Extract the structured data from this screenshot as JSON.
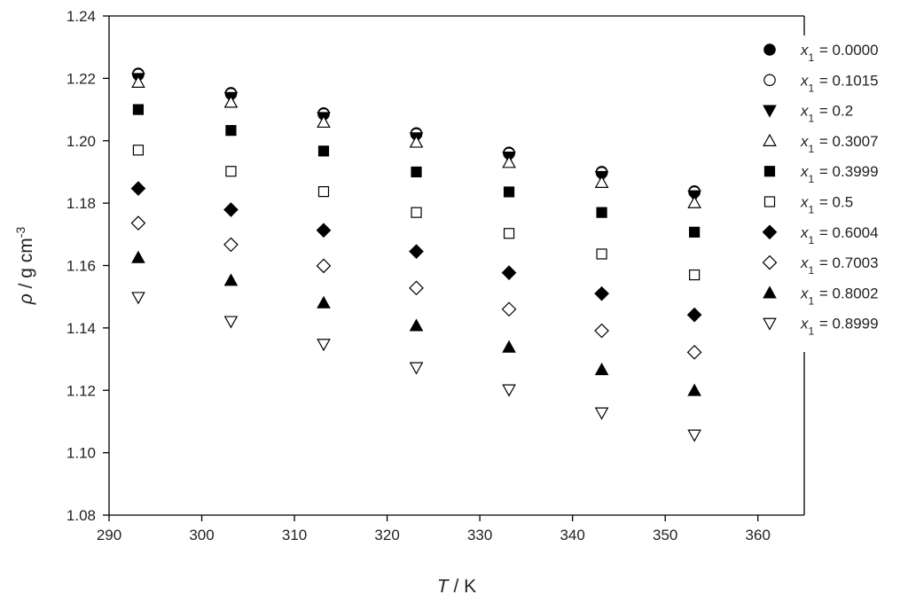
{
  "chart_data": {
    "type": "scatter",
    "xlabel": {
      "italic": "T",
      "rest": " / K"
    },
    "ylabel": {
      "italic": "ρ",
      "rest": " / g cm",
      "sup": "-3"
    },
    "xlim": [
      290,
      365
    ],
    "ylim": [
      1.08,
      1.24
    ],
    "xticks": [
      290,
      300,
      310,
      320,
      330,
      340,
      350,
      360
    ],
    "yticks": [
      "1.08",
      "1.10",
      "1.12",
      "1.14",
      "1.16",
      "1.18",
      "1.20",
      "1.22",
      "1.24"
    ],
    "grid": false,
    "legend_position": "top-right",
    "x": [
      293.15,
      303.15,
      313.15,
      323.15,
      333.15,
      343.15,
      353.15
    ],
    "series": [
      {
        "name": "x1 = 0.0000",
        "label_var": "x",
        "label_sub": "1",
        "label_rest": " = 0.0000",
        "marker": "circle-filled",
        "values": [
          1.2215,
          1.2153,
          1.2088,
          1.2024,
          1.1962,
          1.19,
          1.1838
        ]
      },
      {
        "name": "x1 = 0.1015",
        "label_var": "x",
        "label_sub": "1",
        "label_rest": " = 0.1015",
        "marker": "circle-open",
        "values": [
          1.2212,
          1.215,
          1.2085,
          1.2021,
          1.1959,
          1.1897,
          1.1835
        ]
      },
      {
        "name": "x1 = 0.2",
        "label_var": "x",
        "label_sub": "1",
        "label_rest": " = 0.2",
        "marker": "triangle-down-filled",
        "values": [
          1.22,
          1.2139,
          1.2075,
          1.201,
          1.1948,
          1.1886,
          1.1824
        ]
      },
      {
        "name": "x1 = 0.3007",
        "label_var": "x",
        "label_sub": "1",
        "label_rest": " = 0.3007",
        "marker": "triangle-up-open",
        "values": [
          1.2187,
          1.2123,
          1.2059,
          1.1995,
          1.193,
          1.1866,
          1.1801
        ]
      },
      {
        "name": "x1 = 0.3999",
        "label_var": "x",
        "label_sub": "1",
        "label_rest": " = 0.3999",
        "marker": "square-filled",
        "values": [
          1.21,
          1.2033,
          1.1967,
          1.19,
          1.1836,
          1.177,
          1.1707
        ]
      },
      {
        "name": "x1 = 0.5",
        "label_var": "x",
        "label_sub": "1",
        "label_rest": " = 0.5",
        "marker": "square-open",
        "values": [
          1.197,
          1.1902,
          1.1837,
          1.177,
          1.1703,
          1.1637,
          1.157
        ]
      },
      {
        "name": "x1 = 0.6004",
        "label_var": "x",
        "label_sub": "1",
        "label_rest": " = 0.6004",
        "marker": "diamond-filled",
        "values": [
          1.1847,
          1.1779,
          1.1713,
          1.1645,
          1.1577,
          1.151,
          1.1442
        ]
      },
      {
        "name": "x1 = 0.7003",
        "label_var": "x",
        "label_sub": "1",
        "label_rest": " = 0.7003",
        "marker": "diamond-open",
        "values": [
          1.1736,
          1.1667,
          1.1599,
          1.1528,
          1.146,
          1.1391,
          1.1322
        ]
      },
      {
        "name": "x1 = 0.8002",
        "label_var": "x",
        "label_sub": "1",
        "label_rest": " = 0.8002",
        "marker": "triangle-up-filled",
        "values": [
          1.1625,
          1.1552,
          1.148,
          1.1407,
          1.1338,
          1.1266,
          1.1199
        ]
      },
      {
        "name": "x1 = 0.8999",
        "label_var": "x",
        "label_sub": "1",
        "label_rest": " = 0.8999",
        "marker": "triangle-down-open",
        "values": [
          1.1498,
          1.1421,
          1.1348,
          1.1273,
          1.1202,
          1.1128,
          1.1057
        ]
      }
    ]
  }
}
